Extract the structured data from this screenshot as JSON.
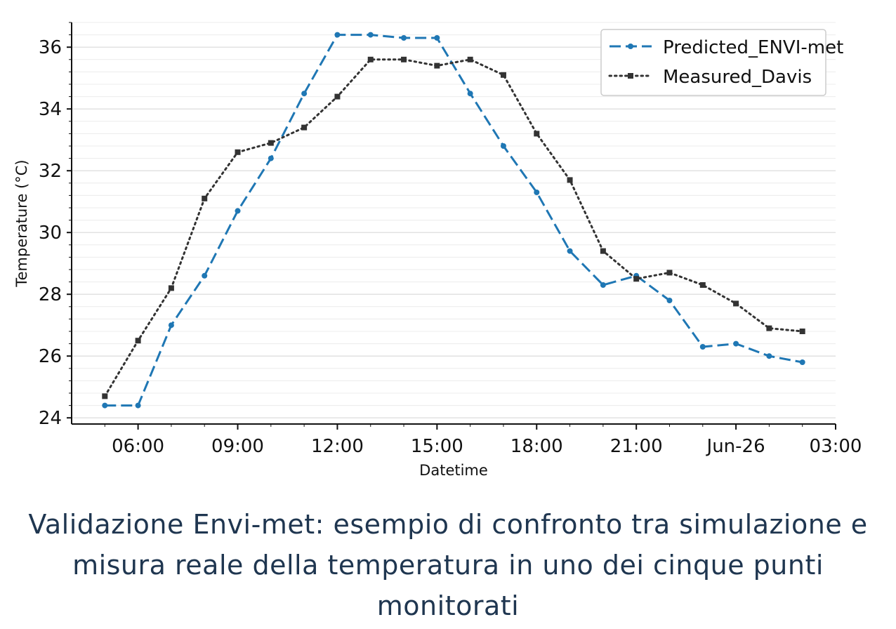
{
  "chart_data": {
    "type": "line",
    "xlabel": "Datetime",
    "ylabel": "Temperature (°C)",
    "x_ticks": [
      "06:00",
      "09:00",
      "12:00",
      "15:00",
      "18:00",
      "21:00",
      "Jun-26",
      "03:00"
    ],
    "x": [
      "05:00",
      "06:00",
      "07:00",
      "08:00",
      "09:00",
      "10:00",
      "11:00",
      "12:00",
      "13:00",
      "14:00",
      "15:00",
      "16:00",
      "17:00",
      "18:00",
      "19:00",
      "20:00",
      "21:00",
      "22:00",
      "23:00",
      "00:00",
      "01:00",
      "02:00"
    ],
    "xlim": [
      4.0,
      27.0
    ],
    "ylim": [
      23.8,
      36.8
    ],
    "y_ticks": [
      24,
      26,
      28,
      30,
      32,
      34,
      36
    ],
    "grid": true,
    "legend": "top-right",
    "series": [
      {
        "name": "Predicted_ENVI-met",
        "color": "#1f77b4",
        "style": "dashed",
        "marker": "circle",
        "values": [
          24.4,
          24.4,
          27.0,
          28.6,
          30.7,
          32.4,
          34.5,
          36.4,
          36.4,
          36.3,
          36.3,
          34.5,
          32.8,
          31.3,
          29.4,
          28.3,
          28.6,
          27.8,
          26.3,
          26.4,
          26.0,
          25.8
        ]
      },
      {
        "name": "Measured_Davis",
        "color": "#333333",
        "style": "dotted",
        "marker": "square",
        "values": [
          24.7,
          26.5,
          28.2,
          31.1,
          32.6,
          32.9,
          33.4,
          34.4,
          35.6,
          35.6,
          35.4,
          35.6,
          35.1,
          33.2,
          31.7,
          29.4,
          28.5,
          28.7,
          28.3,
          27.7,
          26.9,
          26.8
        ]
      }
    ]
  },
  "caption": "Validazione Envi-met: esempio di confronto tra simulazione e misura reale della temperatura in uno dei cinque punti monitorati"
}
